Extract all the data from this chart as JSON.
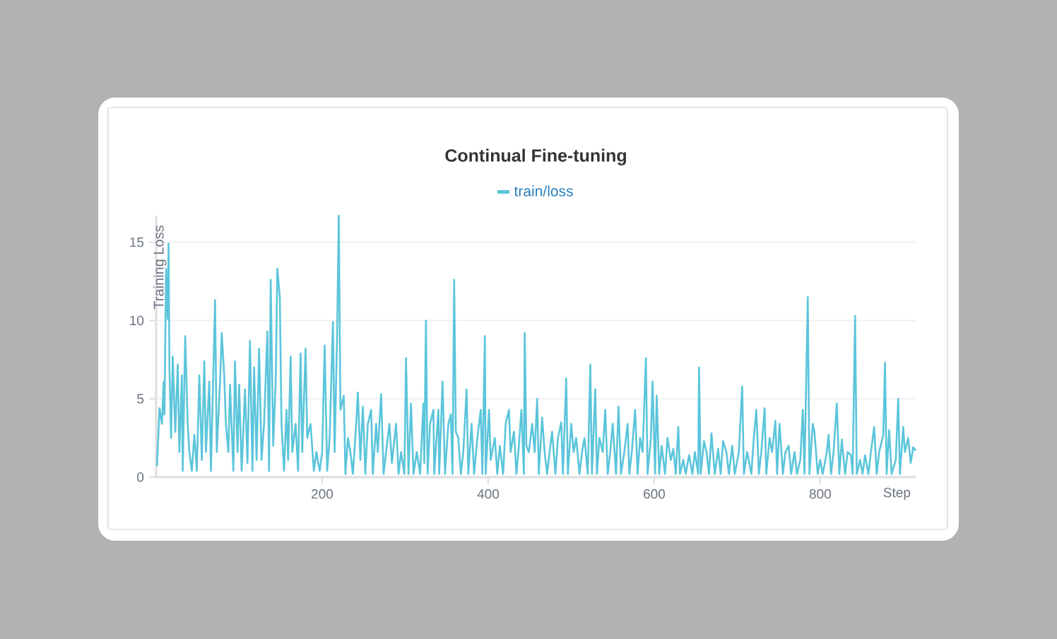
{
  "chart_data": {
    "type": "line",
    "title": "Continual Fine-tuning",
    "xlabel": "Step",
    "ylabel": "Training Loss",
    "xlim": [
      0,
      915
    ],
    "ylim": [
      0,
      16.7
    ],
    "xticks": [
      200,
      400,
      600,
      800
    ],
    "yticks": [
      0,
      5,
      10,
      15
    ],
    "grid": "y",
    "legend": "top",
    "marker": "none",
    "line_style": "solid",
    "series": [
      {
        "name": "train/loss",
        "color": "#5bc5db",
        "x": [
          1,
          4,
          7,
          9,
          10,
          12,
          14,
          15,
          16,
          18,
          20,
          23,
          26,
          28,
          31,
          32,
          35,
          38,
          40,
          43,
          46,
          49,
          52,
          55,
          58,
          60,
          64,
          66,
          71,
          73,
          77,
          79,
          82,
          84,
          87,
          89,
          93,
          95,
          98,
          100,
          103,
          107,
          110,
          113,
          116,
          118,
          121,
          124,
          127,
          130,
          134,
          136,
          138,
          141,
          144,
          146,
          149,
          151,
          154,
          157,
          159,
          162,
          164,
          168,
          171,
          174,
          176,
          180,
          182,
          186,
          190,
          193,
          197,
          200,
          203,
          206,
          209,
          213,
          215,
          218,
          220,
          222,
          226,
          228,
          231,
          234,
          237,
          241,
          243,
          246,
          249,
          252,
          255,
          259,
          261,
          265,
          267,
          271,
          274,
          277,
          281,
          284,
          289,
          292,
          295,
          299,
          301,
          304,
          307,
          310,
          314,
          318,
          322,
          323,
          325,
          327,
          330,
          334,
          335,
          340,
          341,
          345,
          348,
          352,
          355,
          357,
          359,
          361,
          364,
          367,
          370,
          374,
          376,
          380,
          383,
          387,
          391,
          393,
          396,
          397,
          401,
          403,
          408,
          411,
          414,
          418,
          421,
          425,
          427,
          431,
          434,
          437,
          440,
          443,
          444,
          446,
          449,
          453,
          456,
          459,
          461,
          465,
          468,
          471,
          474,
          477,
          481,
          484,
          488,
          490,
          494,
          496,
          500,
          503,
          506,
          510,
          513,
          516,
          520,
          523,
          525,
          529,
          531,
          534,
          538,
          541,
          544,
          547,
          550,
          554,
          557,
          560,
          564,
          568,
          570,
          573,
          577,
          580,
          583,
          586,
          590,
          592,
          596,
          598,
          601,
          603,
          606,
          609,
          613,
          616,
          620,
          623,
          626,
          629,
          631,
          635,
          638,
          642,
          646,
          649,
          653,
          654,
          656,
          660,
          663,
          666,
          669,
          673,
          677,
          680,
          683,
          687,
          690,
          694,
          697,
          702,
          706,
          708,
          712,
          717,
          720,
          723,
          726,
          729,
          733,
          735,
          739,
          742,
          746,
          748,
          751,
          755,
          758,
          762,
          765,
          769,
          772,
          776,
          779,
          781,
          785,
          787,
          791,
          793,
          797,
          800,
          803,
          808,
          810,
          813,
          816,
          820,
          823,
          826,
          830,
          833,
          837,
          839,
          842,
          844,
          848,
          851,
          854,
          858,
          861,
          865,
          868,
          871,
          876,
          878,
          880,
          883,
          886,
          891,
          894,
          896,
          900,
          902,
          906,
          909,
          912,
          915
        ],
        "values": [
          0.7,
          4.4,
          3.4,
          6.1,
          4,
          13.3,
          10.1,
          14.9,
          7,
          2.5,
          7.7,
          2.9,
          7.2,
          1.6,
          6.5,
          0.4,
          9,
          3.4,
          1.6,
          0.4,
          2.7,
          0.4,
          6.5,
          1.1,
          7.4,
          1.6,
          6.1,
          0.4,
          11.3,
          1.6,
          6.1,
          9.2,
          6.5,
          3.4,
          1.6,
          5.9,
          0.4,
          7.4,
          1.6,
          5.9,
          0.4,
          5.6,
          0.9,
          8.7,
          0.4,
          7,
          1.1,
          8.2,
          1.1,
          3.4,
          9.3,
          0.4,
          12.6,
          2,
          6.1,
          13.3,
          11.5,
          3.4,
          0.4,
          4.3,
          1.1,
          7.7,
          1.6,
          3.4,
          0.4,
          7.9,
          1.6,
          8.2,
          2.5,
          3.4,
          0.4,
          1.6,
          0.4,
          1.6,
          8.4,
          0.4,
          2.5,
          9.9,
          1.6,
          9.2,
          16.7,
          4.3,
          5.2,
          0.2,
          2.5,
          1.6,
          0.2,
          3.4,
          5.4,
          1.1,
          4.5,
          0.2,
          3.4,
          4.3,
          0.2,
          3.4,
          1.6,
          5.3,
          0.2,
          1.6,
          3.4,
          0.9,
          3.4,
          0.2,
          1.6,
          0.2,
          7.6,
          0.2,
          4.7,
          0.2,
          1.6,
          0.2,
          4.7,
          0.9,
          10,
          0.2,
          3.4,
          4.3,
          0.2,
          4.3,
          0.2,
          6.1,
          0.2,
          3.4,
          4,
          0.2,
          12.6,
          2.9,
          2.5,
          0.2,
          1.6,
          5.6,
          0.2,
          3.4,
          0.2,
          2.5,
          4.3,
          0.2,
          9,
          0.2,
          4.3,
          1.1,
          2.5,
          0.2,
          2,
          0.2,
          3.4,
          4.3,
          1.6,
          2.9,
          0.2,
          2,
          4.3,
          0.2,
          9.2,
          2,
          1.6,
          3.4,
          1.6,
          5,
          0.2,
          3.8,
          1.6,
          0.2,
          1.6,
          2.9,
          0.2,
          2.5,
          3.5,
          0.2,
          6.3,
          0.2,
          3.4,
          1.6,
          2.5,
          0.2,
          1.6,
          2.5,
          0.2,
          7.2,
          0.2,
          5.6,
          0.2,
          2.5,
          1.6,
          4.3,
          0.2,
          1.6,
          3.4,
          0.2,
          4.5,
          0.2,
          1.6,
          3.4,
          0.2,
          1.6,
          4.3,
          0.2,
          2.5,
          1.6,
          7.6,
          0.2,
          2.5,
          6.1,
          0.2,
          5.2,
          0.2,
          2,
          0.2,
          2.5,
          1.1,
          1.8,
          0.2,
          3.2,
          0.2,
          1.1,
          0.2,
          1.4,
          0.2,
          1.6,
          0.2,
          7,
          0.2,
          2.3,
          1.6,
          0.2,
          2.8,
          0.2,
          1.8,
          0.2,
          2.3,
          1.6,
          0.2,
          2,
          0.2,
          1.6,
          5.8,
          0.2,
          1.6,
          0.2,
          2.5,
          4.3,
          0.2,
          1.6,
          4.4,
          0.2,
          2.5,
          1.6,
          3.6,
          0.2,
          3.4,
          0.2,
          1.6,
          2,
          0.2,
          1.6,
          0.2,
          1.1,
          4.3,
          0.2,
          11.5,
          0.2,
          3.4,
          2.9,
          0.2,
          1.1,
          0.2,
          1.6,
          2.7,
          0.2,
          1.6,
          4.7,
          0.2,
          2.4,
          0.2,
          1.6,
          1.4,
          0.2,
          10.3,
          0.2,
          1.1,
          0.2,
          1.4,
          0.2,
          1.6,
          3.2,
          0.2,
          1.6,
          2.7,
          7.3,
          0.2,
          3,
          0.2,
          1.1,
          5,
          0.2,
          3.2,
          1.6,
          2.5,
          0.9,
          1.9,
          1.7
        ]
      }
    ]
  }
}
